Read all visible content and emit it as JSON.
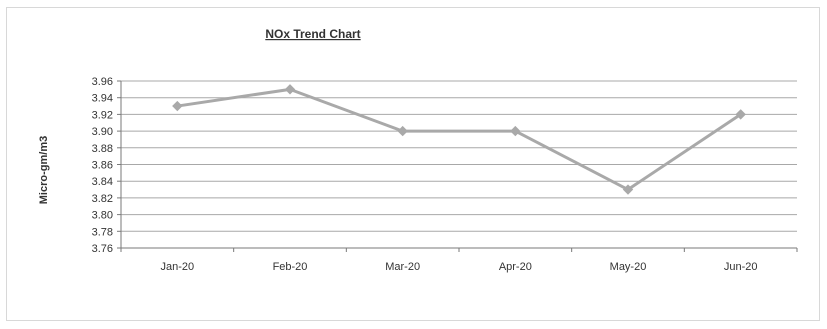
{
  "chart_data": {
    "type": "line",
    "title": "NOx Trend Chart",
    "xlabel": "",
    "ylabel": "Micro-gm/m3",
    "categories": [
      "Jan-20",
      "Feb-20",
      "Mar-20",
      "Apr-20",
      "May-20",
      "Jun-20"
    ],
    "series": [
      {
        "values": [
          3.93,
          3.95,
          3.9,
          3.9,
          3.83,
          3.92
        ],
        "color": "#a9a9a9"
      }
    ],
    "ylim": [
      3.76,
      3.96
    ],
    "yticks": [
      "3.96",
      "3.94",
      "3.92",
      "3.90",
      "3.88",
      "3.86",
      "3.84",
      "3.82",
      "3.80",
      "3.78",
      "3.76"
    ],
    "grid": true,
    "legend": "none"
  }
}
